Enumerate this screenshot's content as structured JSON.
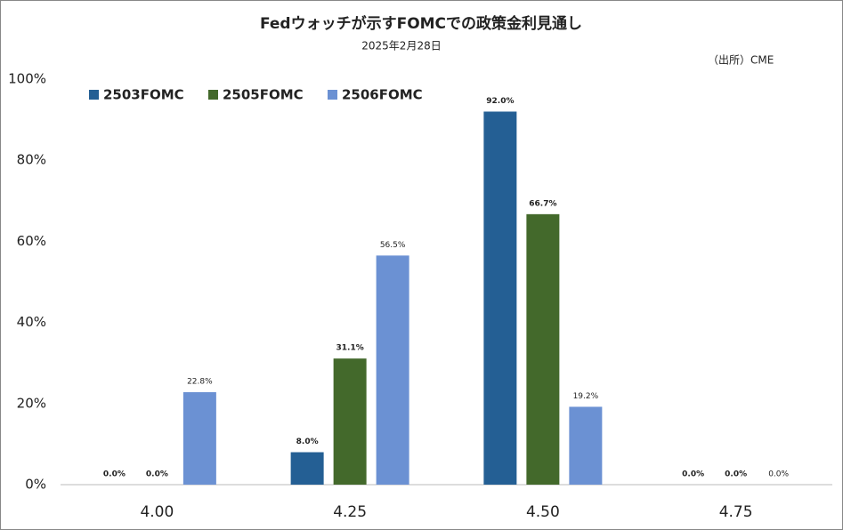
{
  "chart_data": {
    "type": "bar",
    "title": "Fedウォッチが示すFOMCでの政策金利見通し",
    "subtitle": "2025年2月28日",
    "annotation": "（出所）CME",
    "categories": [
      "4.00",
      "4.25",
      "4.50",
      "4.75"
    ],
    "series": [
      {
        "name": "2503FOMC",
        "color": "#245f94",
        "values": [
          0,
          8,
          92,
          0
        ],
        "value_labels": [
          "0.0%",
          "8.0%",
          "92.0%",
          "0.0%"
        ]
      },
      {
        "name": "2505FOMC",
        "color": "#43692b",
        "values": [
          0,
          31.1,
          66.7,
          0
        ],
        "value_labels": [
          "0.0%",
          "31.1%",
          "66.7%",
          "0.0%"
        ]
      },
      {
        "name": "2506FOMC",
        "color": "#6b91d3",
        "values": [
          22.8,
          56.5,
          19.2,
          0
        ],
        "value_labels": [
          "22.8%",
          "56.5%",
          "19.2%",
          "0.0%"
        ]
      }
    ],
    "ylim": [
      0,
      100
    ],
    "yticks": [
      {
        "value": 0,
        "label": "0%"
      },
      {
        "value": 20,
        "label": "20%"
      },
      {
        "value": 40,
        "label": "40%"
      },
      {
        "value": 60,
        "label": "60%"
      },
      {
        "value": 80,
        "label": "80%"
      },
      {
        "value": 100,
        "label": "100%"
      }
    ],
    "grid": false,
    "legend": "top-left"
  }
}
